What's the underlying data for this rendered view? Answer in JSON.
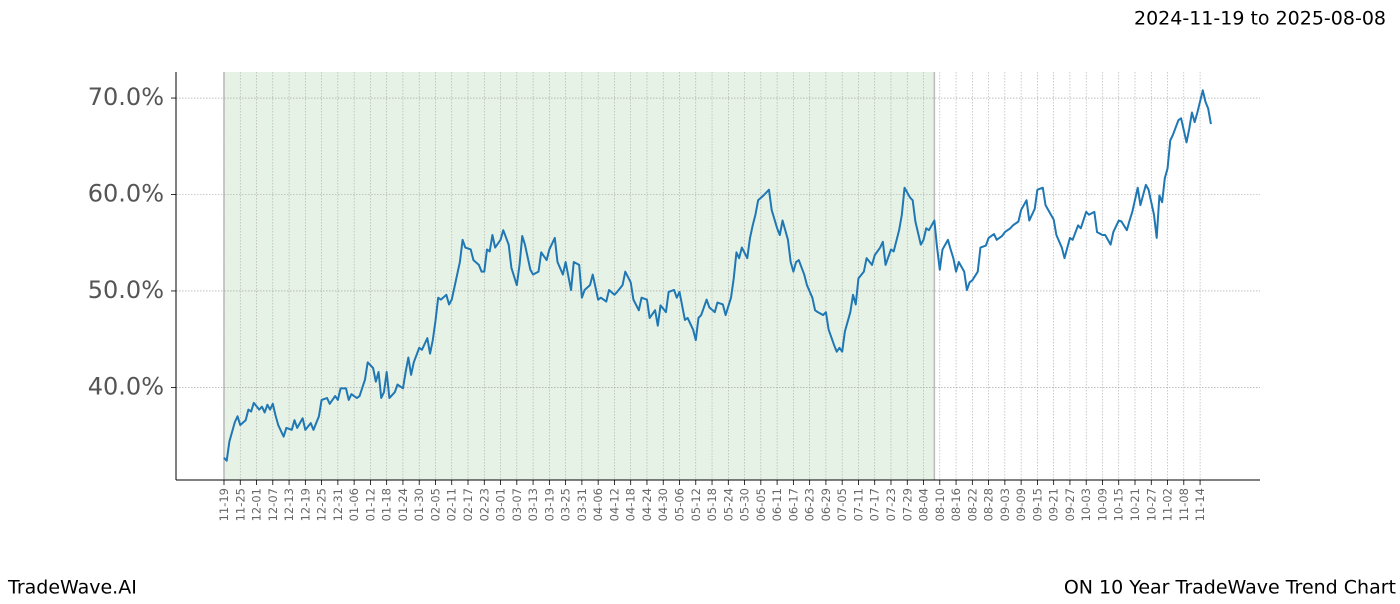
{
  "chart_data": {
    "type": "line",
    "date_range": "2024-11-19 to 2025-08-08",
    "footer_left": "TradeWave.AI",
    "footer_right": "ON 10 Year TradeWave Trend Chart",
    "color": "#1f77b4",
    "highlight_color": "#e6f2e6",
    "highlight_xlim": [
      0,
      262
    ],
    "grid": true,
    "xlim": [
      -17.7,
      382.1
    ],
    "ylim": [
      30.4,
      72.7
    ],
    "yticks": [
      {
        "value": 40,
        "label": "40.0%"
      },
      {
        "value": 50,
        "label": "50.0%"
      },
      {
        "value": 60,
        "label": "60.0%"
      },
      {
        "value": 70,
        "label": "70.0%"
      }
    ],
    "xticks": [
      {
        "value": 0,
        "label": "11-19"
      },
      {
        "value": 6,
        "label": "11-25"
      },
      {
        "value": 12,
        "label": "12-01"
      },
      {
        "value": 18,
        "label": "12-07"
      },
      {
        "value": 24,
        "label": "12-13"
      },
      {
        "value": 30,
        "label": "12-19"
      },
      {
        "value": 36,
        "label": "12-25"
      },
      {
        "value": 42,
        "label": "12-31"
      },
      {
        "value": 48,
        "label": "01-06"
      },
      {
        "value": 54,
        "label": "01-12"
      },
      {
        "value": 60,
        "label": "01-18"
      },
      {
        "value": 66,
        "label": "01-24"
      },
      {
        "value": 72,
        "label": "01-30"
      },
      {
        "value": 78,
        "label": "02-05"
      },
      {
        "value": 84,
        "label": "02-11"
      },
      {
        "value": 90,
        "label": "02-17"
      },
      {
        "value": 96,
        "label": "02-23"
      },
      {
        "value": 102,
        "label": "03-01"
      },
      {
        "value": 108,
        "label": "03-07"
      },
      {
        "value": 114,
        "label": "03-13"
      },
      {
        "value": 120,
        "label": "03-19"
      },
      {
        "value": 126,
        "label": "03-25"
      },
      {
        "value": 132,
        "label": "03-31"
      },
      {
        "value": 138,
        "label": "04-06"
      },
      {
        "value": 144,
        "label": "04-12"
      },
      {
        "value": 150,
        "label": "04-18"
      },
      {
        "value": 156,
        "label": "04-24"
      },
      {
        "value": 162,
        "label": "04-30"
      },
      {
        "value": 168,
        "label": "05-06"
      },
      {
        "value": 174,
        "label": "05-12"
      },
      {
        "value": 180,
        "label": "05-18"
      },
      {
        "value": 186,
        "label": "05-24"
      },
      {
        "value": 192,
        "label": "05-30"
      },
      {
        "value": 198,
        "label": "06-05"
      },
      {
        "value": 204,
        "label": "06-11"
      },
      {
        "value": 210,
        "label": "06-17"
      },
      {
        "value": 216,
        "label": "06-23"
      },
      {
        "value": 222,
        "label": "06-29"
      },
      {
        "value": 228,
        "label": "07-05"
      },
      {
        "value": 234,
        "label": "07-11"
      },
      {
        "value": 240,
        "label": "07-17"
      },
      {
        "value": 246,
        "label": "07-23"
      },
      {
        "value": 252,
        "label": "07-29"
      },
      {
        "value": 258,
        "label": "08-04"
      },
      {
        "value": 264,
        "label": "08-10"
      },
      {
        "value": 270,
        "label": "08-16"
      },
      {
        "value": 276,
        "label": "08-22"
      },
      {
        "value": 282,
        "label": "08-28"
      },
      {
        "value": 288,
        "label": "09-03"
      },
      {
        "value": 294,
        "label": "09-09"
      },
      {
        "value": 300,
        "label": "09-15"
      },
      {
        "value": 306,
        "label": "09-21"
      },
      {
        "value": 312,
        "label": "09-27"
      },
      {
        "value": 318,
        "label": "10-03"
      },
      {
        "value": 324,
        "label": "10-09"
      },
      {
        "value": 330,
        "label": "10-15"
      },
      {
        "value": 336,
        "label": "10-21"
      },
      {
        "value": 342,
        "label": "10-27"
      },
      {
        "value": 348,
        "label": "11-02"
      },
      {
        "value": 354,
        "label": "11-08"
      },
      {
        "value": 360,
        "label": "11-14"
      }
    ],
    "x": [
      0,
      1,
      2,
      4,
      5,
      6,
      8,
      9,
      10,
      11,
      13,
      14,
      15,
      16,
      17,
      18,
      19,
      20,
      22,
      23,
      25,
      26,
      27,
      29,
      30,
      32,
      33,
      35,
      36,
      38,
      39,
      41,
      42,
      43,
      45,
      46,
      47,
      49,
      50,
      52,
      53,
      55,
      56,
      57,
      58,
      59,
      60,
      61,
      63,
      64,
      66,
      67,
      68,
      69,
      70,
      72,
      73,
      75,
      76,
      77,
      78,
      79,
      80,
      82,
      83,
      84,
      86,
      87,
      88,
      89,
      91,
      92,
      94,
      95,
      96,
      97,
      98,
      99,
      100,
      102,
      103,
      105,
      106,
      108,
      109,
      110,
      111,
      113,
      114,
      116,
      117,
      119,
      120,
      122,
      123,
      125,
      126,
      128,
      129,
      131,
      132,
      133,
      135,
      136,
      138,
      139,
      141,
      142,
      144,
      145,
      147,
      148,
      150,
      151,
      153,
      154,
      156,
      157,
      159,
      160,
      161,
      163,
      164,
      166,
      167,
      168,
      170,
      171,
      173,
      174,
      175,
      176,
      178,
      179,
      181,
      182,
      184,
      185,
      187,
      188,
      189,
      190,
      191,
      193,
      194,
      195,
      196,
      197,
      199,
      201,
      202,
      204,
      205,
      206,
      208,
      209,
      210,
      211,
      212,
      214,
      215,
      217,
      218,
      219,
      221,
      222,
      223,
      225,
      226,
      227,
      228,
      229,
      231,
      232,
      233,
      234,
      236,
      237,
      239,
      240,
      242,
      243,
      244,
      246,
      247,
      249,
      250,
      251,
      253,
      254,
      255,
      257,
      258,
      259,
      260,
      262,
      263,
      264,
      265,
      267,
      268,
      269,
      270,
      271,
      273,
      274,
      275,
      276,
      278,
      279,
      281,
      282,
      284,
      285,
      287,
      288,
      290,
      291,
      293,
      294,
      296,
      297,
      299,
      300,
      302,
      303,
      305,
      306,
      307,
      309,
      310,
      312,
      313,
      315,
      316,
      318,
      319,
      321,
      322,
      324,
      325,
      327,
      328,
      330,
      331,
      333,
      334,
      335,
      337,
      338,
      340,
      341,
      343,
      344,
      345,
      346,
      347,
      348,
      349,
      350,
      352,
      353,
      355,
      356,
      357,
      358,
      359,
      361,
      362,
      363,
      364
    ],
    "values": [
      32.7,
      32.4,
      34.4,
      36.4,
      37.0,
      36.1,
      36.6,
      37.7,
      37.5,
      38.4,
      37.7,
      38.0,
      37.4,
      38.2,
      37.7,
      38.3,
      37.1,
      36.1,
      34.9,
      35.8,
      35.6,
      36.6,
      35.8,
      36.8,
      35.6,
      36.3,
      35.6,
      37.0,
      38.7,
      38.9,
      38.3,
      39.1,
      38.7,
      39.9,
      39.9,
      38.7,
      39.3,
      38.9,
      39.1,
      40.8,
      42.6,
      42.0,
      40.6,
      41.6,
      38.9,
      39.5,
      41.6,
      38.9,
      39.5,
      40.3,
      39.9,
      41.6,
      43.1,
      41.3,
      42.6,
      44.1,
      43.9,
      45.1,
      43.5,
      44.9,
      46.9,
      49.3,
      49.1,
      49.6,
      48.6,
      49.1,
      51.7,
      53.0,
      55.3,
      54.5,
      54.3,
      53.2,
      52.7,
      52.0,
      52.0,
      54.3,
      54.1,
      55.8,
      54.5,
      55.3,
      56.3,
      54.8,
      52.4,
      50.6,
      52.7,
      55.7,
      54.8,
      52.2,
      51.7,
      52.0,
      54.0,
      53.2,
      54.3,
      55.5,
      53.0,
      51.7,
      53.0,
      50.1,
      53.0,
      52.7,
      49.3,
      50.1,
      50.6,
      51.7,
      49.1,
      49.3,
      48.9,
      50.1,
      49.6,
      49.9,
      50.6,
      52.0,
      50.9,
      49.1,
      48.0,
      49.3,
      49.1,
      47.2,
      48.0,
      46.4,
      48.5,
      47.8,
      49.9,
      50.1,
      49.3,
      49.9,
      47.0,
      47.2,
      46.0,
      44.9,
      47.2,
      47.5,
      49.1,
      48.3,
      47.8,
      48.8,
      48.6,
      47.5,
      49.3,
      51.3,
      54.0,
      53.4,
      54.5,
      53.4,
      55.5,
      56.8,
      57.9,
      59.4,
      59.9,
      60.5,
      58.4,
      56.5,
      55.8,
      57.3,
      55.3,
      53.0,
      52.0,
      53.0,
      53.2,
      51.7,
      50.6,
      49.3,
      48.0,
      47.8,
      47.5,
      47.8,
      46.0,
      44.4,
      43.7,
      44.1,
      43.7,
      45.8,
      47.8,
      49.6,
      48.6,
      51.3,
      52.0,
      53.4,
      52.7,
      53.7,
      54.5,
      55.1,
      52.7,
      54.3,
      54.1,
      56.3,
      57.9,
      60.7,
      59.7,
      59.4,
      57.2,
      54.8,
      55.3,
      56.5,
      56.3,
      57.3,
      54.5,
      52.2,
      54.3,
      55.3,
      54.3,
      53.4,
      52.0,
      53.0,
      52.0,
      50.1,
      50.9,
      51.1,
      52.0,
      54.5,
      54.7,
      55.5,
      55.9,
      55.3,
      55.7,
      56.1,
      56.5,
      56.8,
      57.2,
      58.4,
      59.4,
      57.3,
      58.5,
      60.5,
      60.7,
      58.9,
      57.9,
      57.4,
      55.8,
      54.5,
      53.4,
      55.5,
      55.3,
      56.8,
      56.5,
      58.2,
      57.9,
      58.2,
      56.1,
      55.8,
      55.8,
      54.8,
      56.1,
      57.3,
      57.2,
      56.3,
      57.3,
      58.2,
      60.7,
      58.9,
      61.0,
      60.5,
      57.9,
      55.5,
      59.9,
      59.2,
      61.7,
      62.7,
      65.6,
      66.2,
      67.7,
      67.9,
      65.4,
      66.8,
      68.5,
      67.5,
      68.5,
      70.8,
      69.6,
      68.9,
      67.3
    ]
  }
}
